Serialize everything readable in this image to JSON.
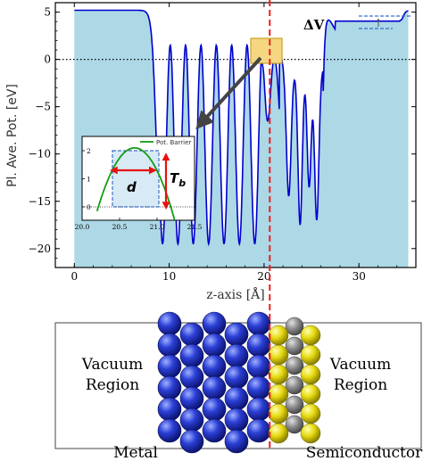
{
  "plot": {
    "ylabel": "Pl. Ave. Pot. [eV]",
    "xlabel": "z-axis [Å]",
    "delta_label": "ΔV",
    "xlim": [
      -2,
      36
    ],
    "ylim": [
      -22,
      6
    ],
    "xticks": [
      "0",
      "10",
      "20",
      "30"
    ],
    "yticks": [
      "5",
      "0",
      "−5",
      "−10",
      "−15",
      "−20"
    ],
    "interface_z": 20.6,
    "colors": {
      "fill": "#add8e6",
      "curve": "#0000cd",
      "interface": "#e8201e",
      "highlight": "#f5d782",
      "barrier": "#139c13",
      "arrow": "#444444"
    }
  },
  "inset": {
    "legend": "Pot. Barrier",
    "d_label": "d",
    "tb_label": "T",
    "tb_sub": "b",
    "xticks": [
      "20.0",
      "20.5",
      "21.0",
      "21.5"
    ],
    "yticks": [
      "2",
      "1",
      "0"
    ]
  },
  "structure": {
    "left_region_line1": "Vacuum",
    "left_region_line2": "Region",
    "right_region_line1": "Vacuum",
    "right_region_line2": "Region",
    "metal_label": "Metal",
    "semiconductor_label": "Semiconductor",
    "colors": {
      "metal_atom": "#2234c4",
      "grey_atom": "#8a8a8a",
      "yellow_atom": "#e3d615"
    }
  }
}
